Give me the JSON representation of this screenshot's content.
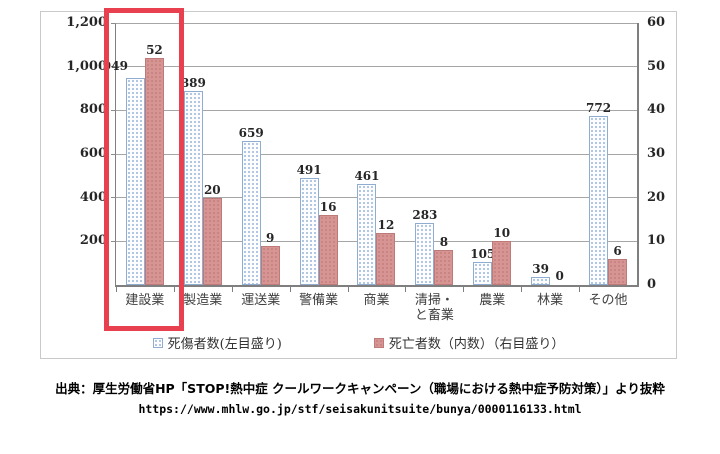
{
  "chart_data": {
    "type": "bar",
    "title": "",
    "categories": [
      "建設業",
      "製造業",
      "運送業",
      "警備業",
      "商業",
      "清掃・\nと畜業",
      "農業",
      "林業",
      "その他"
    ],
    "series": [
      {
        "name": "死傷者数(左目盛り)",
        "axis": "left",
        "color": "#b8cce4",
        "values": [
          949,
          889,
          659,
          491,
          461,
          283,
          105,
          39,
          772
        ]
      },
      {
        "name": "死亡者数（内数）（右目盛り）",
        "axis": "right",
        "color": "#d99694",
        "values": [
          52,
          20,
          9,
          16,
          12,
          8,
          10,
          0,
          6
        ]
      }
    ],
    "left_axis": {
      "max": 1200,
      "ticks": [
        {
          "label": "1,200",
          "value": 1200
        },
        {
          "label": "1,000",
          "value": 1000
        },
        {
          "label": "800",
          "value": 800
        },
        {
          "label": "600",
          "value": 600
        },
        {
          "label": "400",
          "value": 400
        },
        {
          "label": "200",
          "value": 200
        }
      ]
    },
    "right_axis": {
      "max": 60,
      "ticks": [
        {
          "label": "60",
          "value": 60
        },
        {
          "label": "50",
          "value": 50
        },
        {
          "label": "40",
          "value": 40
        },
        {
          "label": "30",
          "value": 30
        },
        {
          "label": "20",
          "value": 20
        },
        {
          "label": "10",
          "value": 10
        },
        {
          "label": "0",
          "value": 0
        }
      ]
    },
    "highlight_category_index": 0,
    "legend_position": "bottom",
    "grid": true
  },
  "legend": {
    "items": [
      {
        "label": "死傷者数(左目盛り)"
      },
      {
        "label": "死亡者数（内数）（右目盛り）"
      }
    ]
  },
  "caption": {
    "line1": "出典：厚生労働省HP「STOP!熱中症 クールワークキャンペーン（職場における熱中症予防対策）」より抜粋",
    "line2": "https://www.mhlw.go.jp/stf/seisakunitsuite/bunya/0000116133.html"
  },
  "colors": {
    "injury_bar_border": "#8fadd0",
    "injury_bar_dot": "#a3bddc",
    "death_bar_fill": "#d69593",
    "death_bar_border": "#bd7a78",
    "highlight": "#e8404f",
    "gridline": "#a6a6a6",
    "axis": "#7f7f7f"
  }
}
